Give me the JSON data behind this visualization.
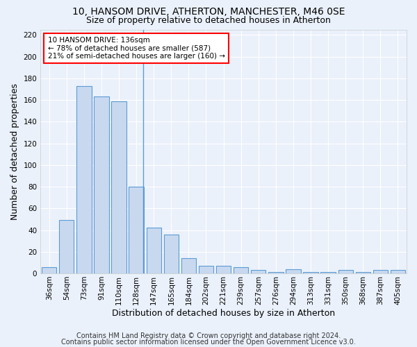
{
  "title": "10, HANSOM DRIVE, ATHERTON, MANCHESTER, M46 0SE",
  "subtitle": "Size of property relative to detached houses in Atherton",
  "xlabel": "Distribution of detached houses by size in Atherton",
  "ylabel": "Number of detached properties",
  "categories": [
    "36sqm",
    "54sqm",
    "73sqm",
    "91sqm",
    "110sqm",
    "128sqm",
    "147sqm",
    "165sqm",
    "184sqm",
    "202sqm",
    "221sqm",
    "239sqm",
    "257sqm",
    "276sqm",
    "294sqm",
    "313sqm",
    "331sqm",
    "350sqm",
    "368sqm",
    "387sqm",
    "405sqm"
  ],
  "values": [
    6,
    49,
    173,
    163,
    159,
    80,
    42,
    36,
    14,
    7,
    7,
    6,
    3,
    1,
    4,
    1,
    1,
    3,
    1,
    3,
    3
  ],
  "bar_color": "#c8d9ef",
  "bar_edge_color": "#5b9bd5",
  "annotation_text": "10 HANSOM DRIVE: 136sqm\n← 78% of detached houses are smaller (587)\n21% of semi-detached houses are larger (160) →",
  "annotation_box_color": "white",
  "annotation_box_edge_color": "red",
  "vline_x": 5.4,
  "ylim": [
    0,
    225
  ],
  "yticks": [
    0,
    20,
    40,
    60,
    80,
    100,
    120,
    140,
    160,
    180,
    200,
    220
  ],
  "footer_line1": "Contains HM Land Registry data © Crown copyright and database right 2024.",
  "footer_line2": "Contains public sector information licensed under the Open Government Licence v3.0.",
  "background_color": "#eaf1fb",
  "grid_color": "white",
  "title_fontsize": 10,
  "subtitle_fontsize": 9,
  "axis_label_fontsize": 9,
  "tick_fontsize": 7.5,
  "annotation_fontsize": 7.5,
  "footer_fontsize": 7
}
